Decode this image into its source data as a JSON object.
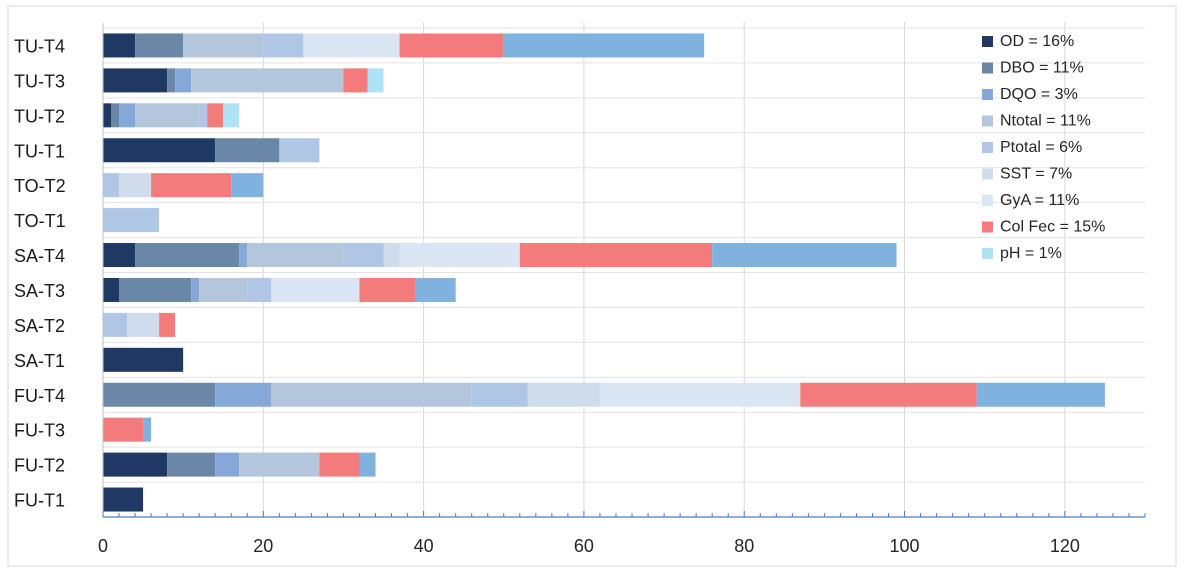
{
  "chart_data": {
    "type": "bar",
    "orientation": "horizontal",
    "stacked": true,
    "title": "",
    "xlabel": "",
    "ylabel": "",
    "xlim": [
      0,
      130
    ],
    "x_ticks": [
      "0",
      "20",
      "40",
      "60",
      "80",
      "100",
      "120"
    ],
    "grid": true,
    "legend_position": "top-right",
    "categories": [
      "TU-T4",
      "TU-T3",
      "TU-T2",
      "TU-T1",
      "TO-T2",
      "TO-T1",
      "SA-T4",
      "SA-T3",
      "SA-T2",
      "SA-T1",
      "FU-T4",
      "FU-T3",
      "FU-T2",
      "FU-T1"
    ],
    "series": [
      {
        "name": "OD = 16%",
        "color": "#1f3864",
        "values": [
          4,
          8,
          1,
          14,
          0,
          0,
          4,
          2,
          0,
          10,
          0,
          0,
          8,
          5
        ]
      },
      {
        "name": "DBO = 11%",
        "color": "#6a87a8",
        "values": [
          6,
          1,
          1,
          8,
          0,
          0,
          13,
          9,
          0,
          0,
          14,
          0,
          6,
          0
        ]
      },
      {
        "name": "DQO = 3%",
        "color": "#86a8d8",
        "values": [
          0,
          2,
          2,
          0,
          0,
          0,
          1,
          1,
          0,
          0,
          7,
          0,
          3,
          0
        ]
      },
      {
        "name": "Ntotal = 11%",
        "color": "#b4c6dc",
        "values": [
          10,
          19,
          8,
          0,
          0,
          0,
          12,
          6,
          0,
          0,
          25,
          0,
          10,
          0
        ]
      },
      {
        "name": "Ptotal = 6%",
        "color": "#afc6e4",
        "values": [
          5,
          0,
          1,
          5,
          2,
          7,
          5,
          3,
          3,
          0,
          7,
          0,
          0,
          0
        ]
      },
      {
        "name": "SST = 7%",
        "color": "#cfdceb",
        "values": [
          0,
          0,
          0,
          0,
          4,
          0,
          2,
          0,
          4,
          0,
          9,
          0,
          0,
          0
        ]
      },
      {
        "name": "GyA = 11%",
        "color": "#dae6f4",
        "values": [
          12,
          0,
          0,
          0,
          0,
          0,
          15,
          11,
          0,
          0,
          25,
          0,
          0,
          0
        ]
      },
      {
        "name": "Col Fec = 15%",
        "color": "#f47b7b",
        "values": [
          13,
          3,
          2,
          0,
          10,
          0,
          24,
          7,
          2,
          0,
          22,
          5,
          5,
          0
        ]
      },
      {
        "name": "pH = 1%",
        "color": "#aee3f5",
        "values": [
          0,
          2,
          2,
          0,
          0,
          0,
          0,
          0,
          0,
          0,
          0,
          0,
          0,
          0
        ]
      },
      {
        "name": "",
        "color": "#7fb2de",
        "values": [
          25,
          0,
          0,
          0,
          4,
          0,
          23,
          5,
          0,
          0,
          16,
          1,
          2,
          0
        ]
      }
    ]
  }
}
